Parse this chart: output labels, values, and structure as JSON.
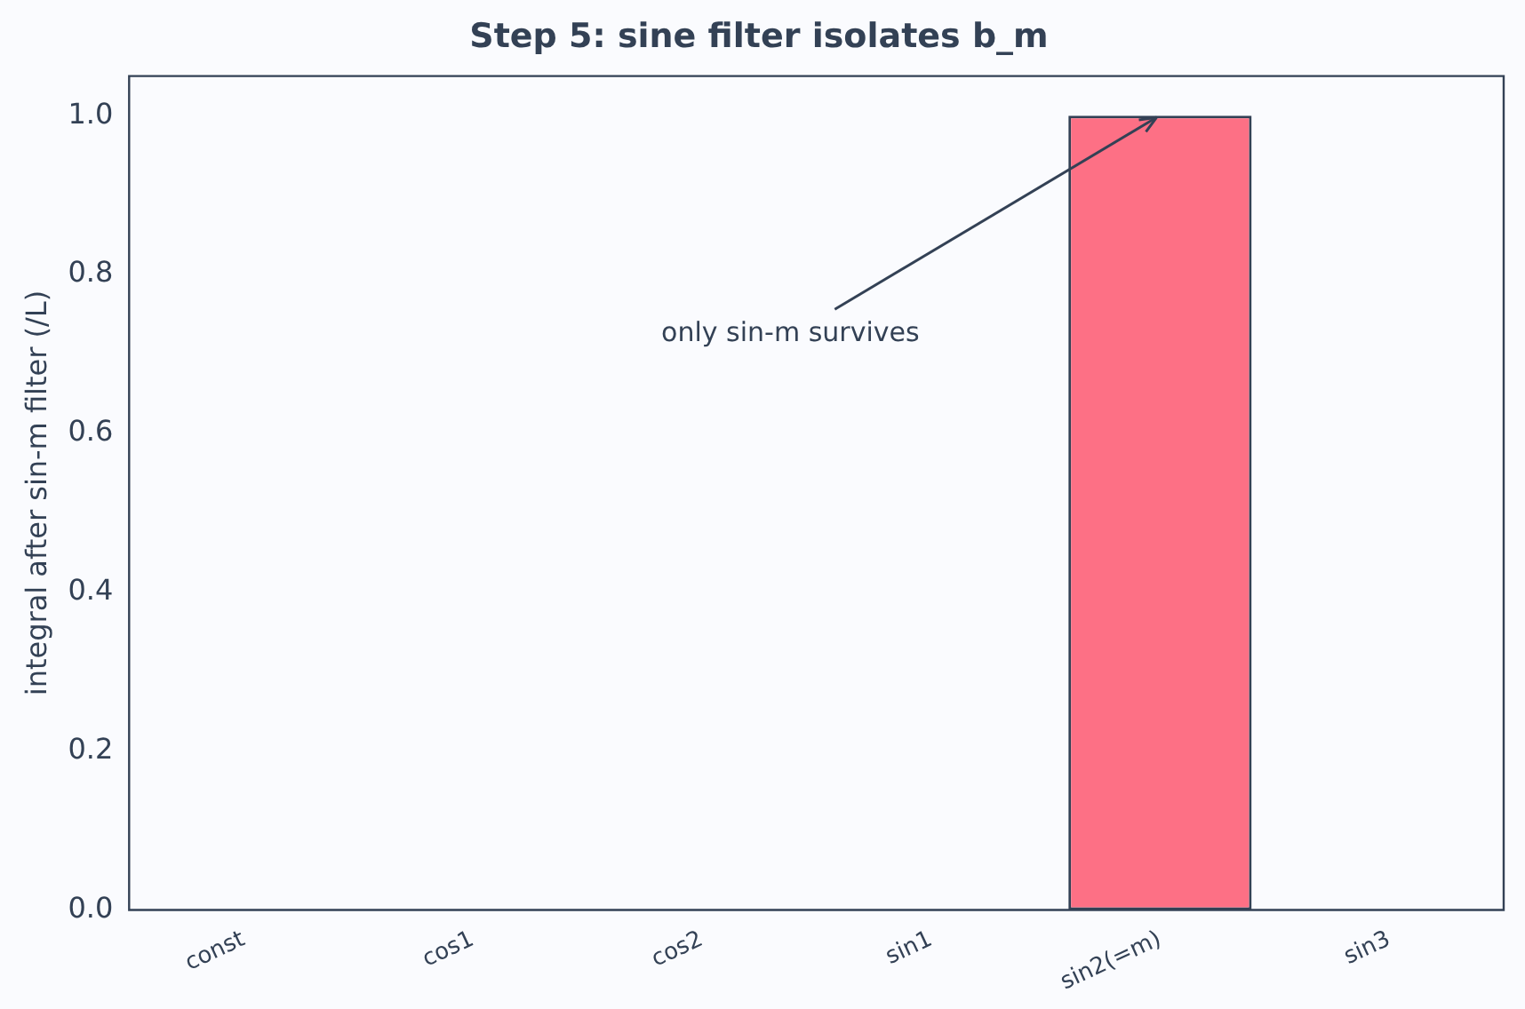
{
  "chart_data": {
    "type": "bar",
    "title": "Step 5: sine filter isolates b_m",
    "ylabel": "integral after sin-m filter (/L)",
    "categories": [
      "const",
      "cos1",
      "cos2",
      "sin1",
      "sin2(=m)",
      "sin3"
    ],
    "values": [
      0,
      0,
      0,
      0,
      1.0,
      0
    ],
    "color": "#fd7085",
    "ylim": [
      0,
      1.05
    ],
    "yticks": [
      {
        "value": 0,
        "label": "0.0"
      },
      {
        "value": 0.2,
        "label": "0.2"
      },
      {
        "value": 0.4,
        "label": "0.4"
      },
      {
        "value": 0.6,
        "label": "0.6"
      },
      {
        "value": 0.8,
        "label": "0.8"
      },
      {
        "value": 1.0,
        "label": "1.0"
      }
    ],
    "grid": false,
    "legend": false,
    "annotations": [
      {
        "text": "only sin-m survives",
        "x": "sin2(=m)",
        "y": 1.0
      }
    ]
  }
}
